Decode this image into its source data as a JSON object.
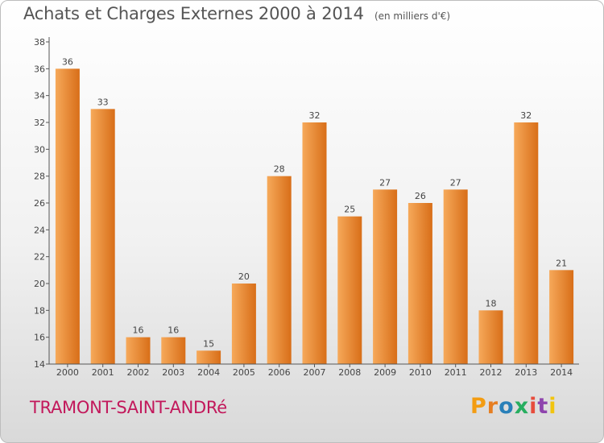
{
  "title": "Achats et Charges Externes 2000 à 2014",
  "unit": "(en milliers d'€)",
  "commune": "TRAMONT-SAINT-ANDRé",
  "logo": {
    "text": "Proxiti",
    "letter_colors": [
      "#f39c12",
      "#e67e22",
      "#2980b9",
      "#27ae60",
      "#e74c3c",
      "#8e44ad",
      "#f1c40f"
    ]
  },
  "colors": {
    "bar_light": "#f6a95a",
    "bar_dark": "#d86e18",
    "axis": "#555555",
    "text": "#444444",
    "commune": "#c2185b"
  },
  "chart_data": {
    "type": "bar",
    "title": "Achats et Charges Externes 2000 à 2014",
    "xlabel": "",
    "ylabel": "",
    "categories": [
      "2000",
      "2001",
      "2002",
      "2003",
      "2004",
      "2005",
      "2006",
      "2007",
      "2008",
      "2009",
      "2010",
      "2011",
      "2012",
      "2013",
      "2014"
    ],
    "values": [
      36,
      33,
      16,
      16,
      15,
      20,
      28,
      32,
      25,
      27,
      26,
      27,
      18,
      32,
      21
    ],
    "ylim": [
      14,
      38
    ],
    "yticks": [
      14,
      16,
      18,
      20,
      22,
      24,
      26,
      28,
      30,
      32,
      34,
      36,
      38
    ],
    "grid": false,
    "legend": "none"
  }
}
